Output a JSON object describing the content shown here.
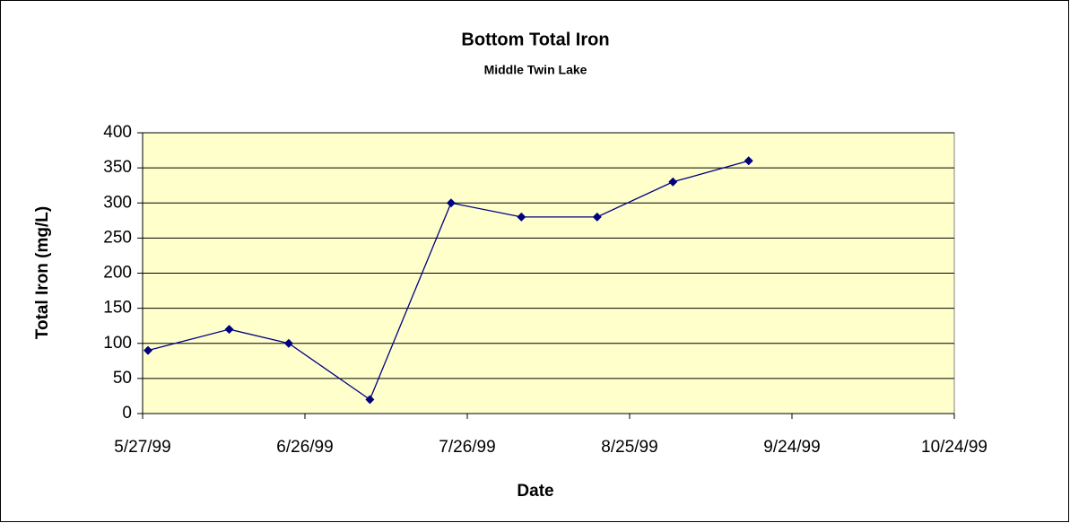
{
  "chart_data": {
    "type": "line",
    "title": "Bottom Total Iron",
    "subtitle": "Middle Twin Lake",
    "x_label": "Date",
    "y_label": "Total Iron (mg/L)",
    "x": [
      "1999-05-28",
      "1999-06-12",
      "1999-06-23",
      "1999-07-08",
      "1999-07-23",
      "1999-08-05",
      "1999-08-19",
      "1999-09-02",
      "1999-09-16"
    ],
    "series": [
      {
        "name": "Total Iron",
        "color": "#000080",
        "values": [
          90,
          120,
          100,
          20,
          300,
          280,
          280,
          330,
          360
        ]
      }
    ],
    "xlim": [
      "1999-05-27",
      "1999-10-24"
    ],
    "xticks": [
      {
        "value": "1999-05-27",
        "label": "5/27/99"
      },
      {
        "value": "1999-06-26",
        "label": "6/26/99"
      },
      {
        "value": "1999-07-26",
        "label": "7/26/99"
      },
      {
        "value": "1999-08-25",
        "label": "8/25/99"
      },
      {
        "value": "1999-09-24",
        "label": "9/24/99"
      },
      {
        "value": "1999-10-24",
        "label": "10/24/99"
      }
    ],
    "ylim": [
      0,
      400
    ],
    "yticks": [
      0,
      50,
      100,
      150,
      200,
      250,
      300,
      350,
      400
    ],
    "grid": true,
    "plot_background": "#ffffcc"
  }
}
